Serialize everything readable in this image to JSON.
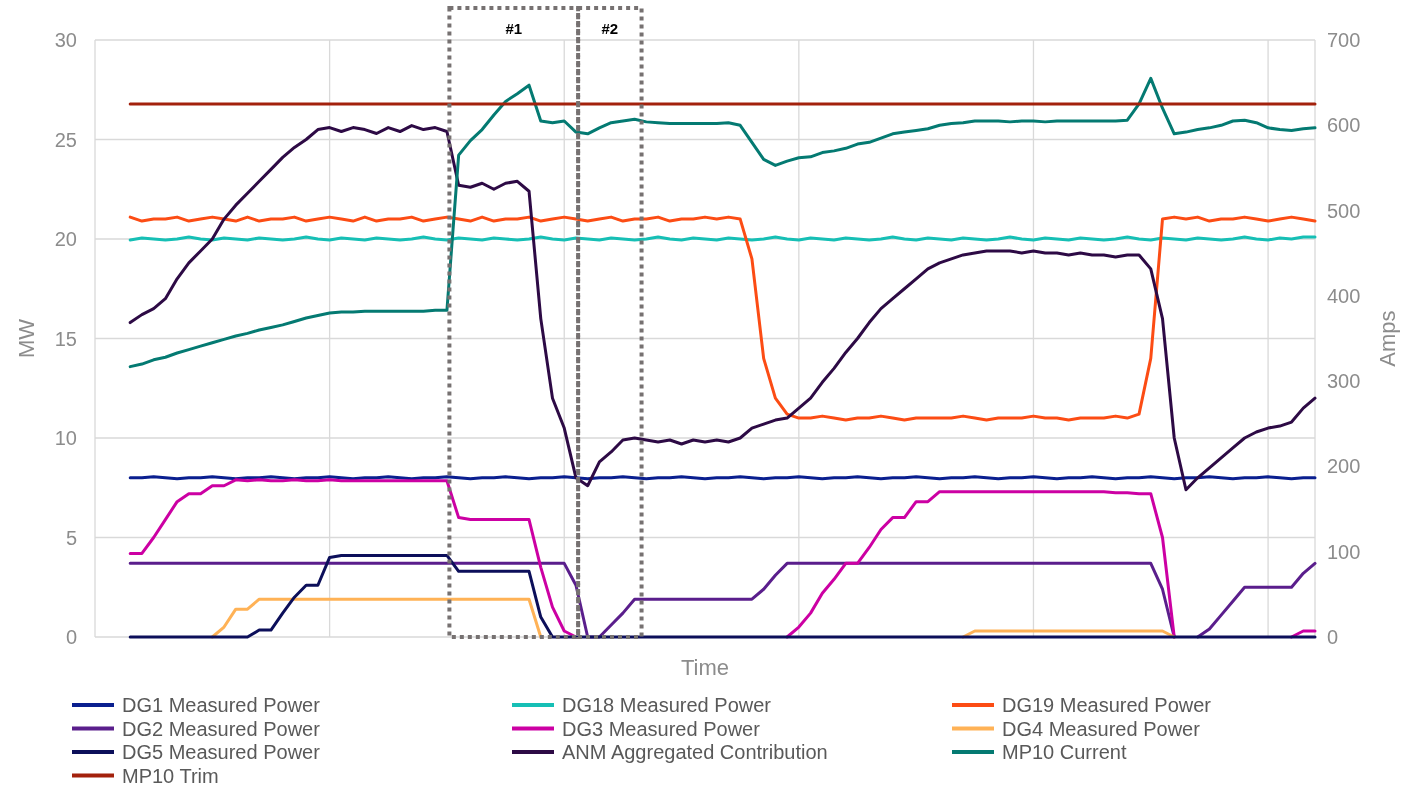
{
  "chart_data": {
    "type": "line",
    "xlabel": "Time",
    "ylabel": "MW",
    "y2label": "Amps",
    "categories": [
      null,
      null,
      null,
      null,
      null,
      null,
      null,
      null,
      null,
      null,
      null,
      null,
      null,
      null,
      null,
      null,
      null,
      null,
      null,
      null,
      null,
      null,
      null,
      null,
      null,
      null,
      null,
      null,
      null,
      null,
      null,
      null,
      null,
      null,
      null,
      null,
      null,
      null,
      null,
      null,
      null,
      null,
      null,
      null,
      null,
      null,
      null,
      null,
      null,
      null,
      null,
      null,
      null,
      null,
      null,
      null,
      null,
      null,
      null,
      null,
      null,
      null,
      null,
      null,
      null,
      null,
      null,
      null,
      null,
      null,
      null,
      null,
      null,
      null,
      null,
      null,
      null,
      null,
      null,
      null,
      null,
      null,
      null,
      null,
      null,
      null,
      null,
      null,
      null,
      null,
      null,
      null,
      null,
      null,
      null,
      null,
      null,
      null,
      null,
      null,
      null,
      null,
      null,
      null,
      null
    ],
    "ylim": [
      0,
      30
    ],
    "yticks": [
      0,
      5,
      10,
      15,
      20,
      25,
      30
    ],
    "y2lim": [
      0,
      700
    ],
    "y2ticks": [
      0,
      100,
      200,
      300,
      400,
      500,
      600,
      700
    ],
    "grid": true,
    "legend": "bottom",
    "line_style": "solid",
    "annotations": [
      "#1",
      "#2"
    ],
    "series": [
      {
        "name": "DG1 Measured Power",
        "color": "#0a1f8f",
        "values": [
          null,
          null,
          null,
          8.0,
          8.0,
          8.05,
          8.0,
          7.95,
          8.0,
          8.0,
          8.05,
          8.0,
          7.95,
          8.0,
          8.0,
          8.05,
          8.0,
          7.95,
          8.0,
          8.0,
          8.05,
          8.0,
          7.95,
          8.0,
          8.0,
          8.05,
          8.0,
          7.95,
          8.0,
          8.0,
          8.05,
          8.0,
          7.95,
          8.0,
          8.0,
          8.05,
          8.0,
          7.95,
          8.0,
          8.0,
          8.05,
          8.0,
          7.95,
          8.0,
          8.0,
          8.05,
          8.0,
          7.95,
          8.0,
          8.0,
          8.05,
          8.0,
          7.95,
          8.0,
          8.0,
          8.05,
          8.0,
          7.95,
          8.0,
          8.0,
          8.05,
          8.0,
          7.95,
          8.0,
          8.0,
          8.05,
          8.0,
          7.95,
          8.0,
          8.0,
          8.05,
          8.0,
          7.95,
          8.0,
          8.0,
          8.05,
          8.0,
          7.95,
          8.0,
          8.0,
          8.05,
          8.0,
          7.95,
          8.0,
          8.0,
          8.05,
          8.0,
          7.95,
          8.0,
          8.0,
          8.05,
          8.0,
          7.95,
          8.0,
          8.0,
          8.05,
          8.0,
          7.95,
          8.0,
          8.0,
          8.05,
          8.0,
          7.95,
          8.0,
          8.0
        ]
      },
      {
        "name": "DG18 Measured Power",
        "color": "#16bfb5",
        "values": [
          null,
          null,
          null,
          19.95,
          20.05,
          20.0,
          19.95,
          20.0,
          20.1,
          20.0,
          19.95,
          20.05,
          20.0,
          19.95,
          20.05,
          20.0,
          19.95,
          20.0,
          20.1,
          20.0,
          19.95,
          20.05,
          20.0,
          19.95,
          20.05,
          20.0,
          19.95,
          20.0,
          20.1,
          20.0,
          19.95,
          20.05,
          20.0,
          19.95,
          20.05,
          20.0,
          19.95,
          20.0,
          20.1,
          20.0,
          19.95,
          20.05,
          20.0,
          19.95,
          20.05,
          20.0,
          19.95,
          20.0,
          20.1,
          20.0,
          19.95,
          20.05,
          20.0,
          19.95,
          20.05,
          20.0,
          19.95,
          20.0,
          20.1,
          20.0,
          19.95,
          20.05,
          20.0,
          19.95,
          20.05,
          20.0,
          19.95,
          20.0,
          20.1,
          20.0,
          19.95,
          20.05,
          20.0,
          19.95,
          20.05,
          20.0,
          19.95,
          20.0,
          20.1,
          20.0,
          19.95,
          20.05,
          20.0,
          19.95,
          20.05,
          20.0,
          19.95,
          20.0,
          20.1,
          20.0,
          19.95,
          20.05,
          20.0,
          19.95,
          20.05,
          20.0,
          19.95,
          20.0,
          20.1,
          20.0,
          19.95,
          20.05,
          20.0,
          20.1,
          20.1
        ]
      },
      {
        "name": "DG19 Measured Power",
        "color": "#fc4c14",
        "values": [
          null,
          null,
          null,
          21.1,
          20.9,
          21.0,
          21.0,
          21.1,
          20.9,
          21.0,
          21.1,
          21.0,
          20.9,
          21.1,
          20.9,
          21.0,
          21.0,
          21.1,
          20.9,
          21.0,
          21.1,
          21.0,
          20.9,
          21.1,
          20.9,
          21.0,
          21.0,
          21.1,
          20.9,
          21.0,
          21.1,
          21.0,
          20.9,
          21.1,
          20.9,
          21.0,
          21.0,
          21.1,
          20.9,
          21.0,
          21.1,
          21.0,
          20.9,
          21.0,
          21.1,
          20.9,
          21.0,
          21.0,
          21.1,
          20.9,
          21.0,
          21.0,
          21.1,
          21.0,
          21.1,
          21.0,
          19.0,
          14.0,
          12.0,
          11.2,
          11.0,
          11.0,
          11.1,
          11.0,
          10.9,
          11.0,
          11.0,
          11.1,
          11.0,
          10.9,
          11.0,
          11.0,
          11.0,
          11.0,
          11.1,
          11.0,
          10.9,
          11.0,
          11.0,
          11.0,
          11.1,
          11.0,
          11.0,
          10.9,
          11.0,
          11.0,
          11.0,
          11.1,
          11.0,
          11.2,
          14.0,
          21.0,
          21.1,
          21.0,
          21.1,
          20.9,
          21.0,
          21.0,
          21.1,
          21.0,
          20.9,
          21.0,
          21.1,
          21.0,
          20.9
        ]
      },
      {
        "name": "DG2 Measured Power",
        "color": "#5a1e8c",
        "values": [
          null,
          null,
          null,
          3.7,
          3.7,
          3.7,
          3.7,
          3.7,
          3.7,
          3.7,
          3.7,
          3.7,
          3.7,
          3.7,
          3.7,
          3.7,
          3.7,
          3.7,
          3.7,
          3.7,
          3.7,
          3.7,
          3.7,
          3.7,
          3.7,
          3.7,
          3.7,
          3.7,
          3.7,
          3.7,
          3.7,
          3.7,
          3.7,
          3.7,
          3.7,
          3.7,
          3.7,
          3.7,
          3.7,
          3.7,
          3.7,
          2.6,
          0,
          0,
          0.6,
          1.2,
          1.9,
          1.9,
          1.9,
          1.9,
          1.9,
          1.9,
          1.9,
          1.9,
          1.9,
          1.9,
          1.9,
          2.4,
          3.1,
          3.7,
          3.7,
          3.7,
          3.7,
          3.7,
          3.7,
          3.7,
          3.7,
          3.7,
          3.7,
          3.7,
          3.7,
          3.7,
          3.7,
          3.7,
          3.7,
          3.7,
          3.7,
          3.7,
          3.7,
          3.7,
          3.7,
          3.7,
          3.7,
          3.7,
          3.7,
          3.7,
          3.7,
          3.7,
          3.7,
          3.7,
          3.7,
          2.4,
          0,
          null,
          0,
          0.4,
          1.1,
          1.8,
          2.5,
          2.5,
          2.5,
          2.5,
          2.5,
          3.2,
          3.7
        ]
      },
      {
        "name": "DG3 Measured Power",
        "color": "#cc00a3",
        "values": [
          null,
          null,
          null,
          4.2,
          4.2,
          5.0,
          5.9,
          6.8,
          7.2,
          7.2,
          7.6,
          7.6,
          7.9,
          7.85,
          7.9,
          7.85,
          7.85,
          7.9,
          7.85,
          7.85,
          7.9,
          7.85,
          7.85,
          7.85,
          7.85,
          7.85,
          7.85,
          7.85,
          7.85,
          7.85,
          7.85,
          6.0,
          5.9,
          5.9,
          5.9,
          5.9,
          5.9,
          5.9,
          3.5,
          1.5,
          0.3,
          0,
          null,
          null,
          null,
          null,
          null,
          null,
          null,
          null,
          null,
          null,
          null,
          null,
          null,
          null,
          null,
          null,
          null,
          0,
          0.5,
          1.2,
          2.2,
          2.9,
          3.7,
          3.7,
          4.5,
          5.4,
          6.0,
          6.0,
          6.8,
          6.8,
          7.3,
          7.3,
          7.3,
          7.3,
          7.3,
          7.3,
          7.3,
          7.3,
          7.3,
          7.3,
          7.3,
          7.3,
          7.3,
          7.3,
          7.3,
          7.25,
          7.25,
          7.2,
          7.2,
          5.0,
          0,
          null,
          null,
          null,
          null,
          null,
          null,
          null,
          null,
          null,
          0,
          0.3,
          0.3
        ]
      },
      {
        "name": "DG4 Measured Power",
        "color": "#ffb256",
        "values": [
          null,
          null,
          null,
          null,
          null,
          null,
          null,
          null,
          null,
          null,
          0,
          0.5,
          1.4,
          1.4,
          1.9,
          1.9,
          1.9,
          1.9,
          1.9,
          1.9,
          1.9,
          1.9,
          1.9,
          1.9,
          1.9,
          1.9,
          1.9,
          1.9,
          1.9,
          1.9,
          1.9,
          1.9,
          1.9,
          1.9,
          1.9,
          1.9,
          1.9,
          1.9,
          0,
          null,
          null,
          null,
          null,
          null,
          null,
          null,
          null,
          null,
          null,
          null,
          null,
          null,
          null,
          null,
          null,
          null,
          null,
          null,
          null,
          null,
          null,
          null,
          null,
          null,
          null,
          null,
          null,
          null,
          null,
          null,
          null,
          null,
          null,
          null,
          0,
          0.3,
          0.3,
          0.3,
          0.3,
          0.3,
          0.3,
          0.3,
          0.3,
          0.3,
          0.3,
          0.3,
          0.3,
          0.3,
          0.3,
          0.3,
          0.3,
          0.3,
          0,
          null,
          null,
          null,
          null,
          null,
          null,
          null,
          null,
          null,
          null,
          null,
          null
        ]
      },
      {
        "name": "DG5 Measured Power",
        "color": "#0c0f5a",
        "values": [
          null,
          null,
          null,
          0,
          0,
          0,
          0,
          0,
          0,
          0,
          0,
          0,
          0,
          0,
          0.35,
          0.35,
          1.2,
          2.0,
          2.6,
          2.6,
          4.0,
          4.1,
          4.1,
          4.1,
          4.1,
          4.1,
          4.1,
          4.1,
          4.1,
          4.1,
          4.1,
          3.3,
          3.3,
          3.3,
          3.3,
          3.3,
          3.3,
          3.3,
          1.0,
          0,
          0,
          0,
          0,
          0,
          0,
          0,
          0,
          0,
          0,
          0,
          0,
          0,
          0,
          0,
          0,
          0,
          0,
          0,
          0,
          0,
          0,
          0,
          0,
          0,
          0,
          0,
          0,
          0,
          0,
          0,
          0,
          0,
          0,
          0,
          0,
          0,
          0,
          0,
          0,
          0,
          0,
          0,
          0,
          0,
          0,
          0,
          0,
          0,
          0,
          0,
          0,
          0,
          0,
          0,
          0,
          0,
          0,
          0,
          0,
          0,
          0,
          0,
          0,
          0,
          0
        ]
      },
      {
        "name": "ANM Aggregated Contribution",
        "color": "#2d0a45",
        "values": [
          null,
          null,
          null,
          15.8,
          16.2,
          16.5,
          17.0,
          18.0,
          18.8,
          19.4,
          20.0,
          21.0,
          21.7,
          22.3,
          22.9,
          23.5,
          24.1,
          24.6,
          25.0,
          25.5,
          25.6,
          25.4,
          25.6,
          25.5,
          25.3,
          25.6,
          25.4,
          25.7,
          25.5,
          25.6,
          25.4,
          22.7,
          22.6,
          22.8,
          22.5,
          22.8,
          22.9,
          22.4,
          16.0,
          12.0,
          10.5,
          8.0,
          7.6,
          8.8,
          9.3,
          9.9,
          10.0,
          9.9,
          9.8,
          9.9,
          9.7,
          9.9,
          9.8,
          9.9,
          9.8,
          10.0,
          10.5,
          10.7,
          10.9,
          11.0,
          11.5,
          12.0,
          12.8,
          13.5,
          14.3,
          15.0,
          15.8,
          16.5,
          17.0,
          17.5,
          18.0,
          18.5,
          18.8,
          19.0,
          19.2,
          19.3,
          19.4,
          19.4,
          19.4,
          19.3,
          19.4,
          19.3,
          19.3,
          19.2,
          19.3,
          19.2,
          19.2,
          19.1,
          19.2,
          19.2,
          18.5,
          16.0,
          10.0,
          7.4,
          8.0,
          8.5,
          9.0,
          9.5,
          10.0,
          10.3,
          10.5,
          10.6,
          10.8,
          11.5,
          12.0
        ]
      },
      {
        "name": "MP10 Current",
        "color": "#047a72",
        "axis": "y2",
        "values": [
          null,
          null,
          null,
          317,
          320,
          325,
          328,
          333,
          337,
          341,
          345,
          349,
          353,
          356,
          360,
          363,
          366,
          370,
          374,
          377,
          380,
          381,
          381,
          382,
          382,
          382,
          382,
          382,
          382,
          383,
          383,
          565,
          582,
          595,
          612,
          628,
          637,
          647,
          605,
          603,
          605,
          592,
          590,
          597,
          603,
          605,
          607,
          604,
          603,
          602,
          602,
          602,
          602,
          602,
          603,
          600,
          580,
          560,
          553,
          558,
          562,
          563,
          568,
          570,
          573,
          578,
          580,
          585,
          590,
          592,
          594,
          596,
          600,
          602,
          603,
          605,
          605,
          605,
          604,
          605,
          605,
          604,
          605,
          605,
          605,
          605,
          605,
          605,
          606,
          625,
          655,
          620,
          590,
          592,
          595,
          597,
          600,
          605,
          606,
          603,
          597,
          595,
          594,
          596,
          597
        ]
      },
      {
        "name": "MP10 Trim",
        "color": "#a3210c",
        "axis": "y2",
        "values": [
          null,
          null,
          null,
          625,
          625,
          625,
          625,
          625,
          625,
          625,
          625,
          625,
          625,
          625,
          625,
          625,
          625,
          625,
          625,
          625,
          625,
          625,
          625,
          625,
          625,
          625,
          625,
          625,
          625,
          625,
          625,
          625,
          625,
          625,
          625,
          625,
          625,
          625,
          625,
          625,
          625,
          625,
          625,
          625,
          625,
          625,
          625,
          625,
          625,
          625,
          625,
          625,
          625,
          625,
          625,
          625,
          625,
          625,
          625,
          625,
          625,
          625,
          625,
          625,
          625,
          625,
          625,
          625,
          625,
          625,
          625,
          625,
          625,
          625,
          625,
          625,
          625,
          625,
          625,
          625,
          625,
          625,
          625,
          625,
          625,
          625,
          625,
          625,
          625,
          625,
          625,
          625,
          625,
          625,
          625,
          625,
          625,
          625,
          625,
          625,
          625,
          625,
          625,
          625,
          625
        ]
      }
    ]
  }
}
